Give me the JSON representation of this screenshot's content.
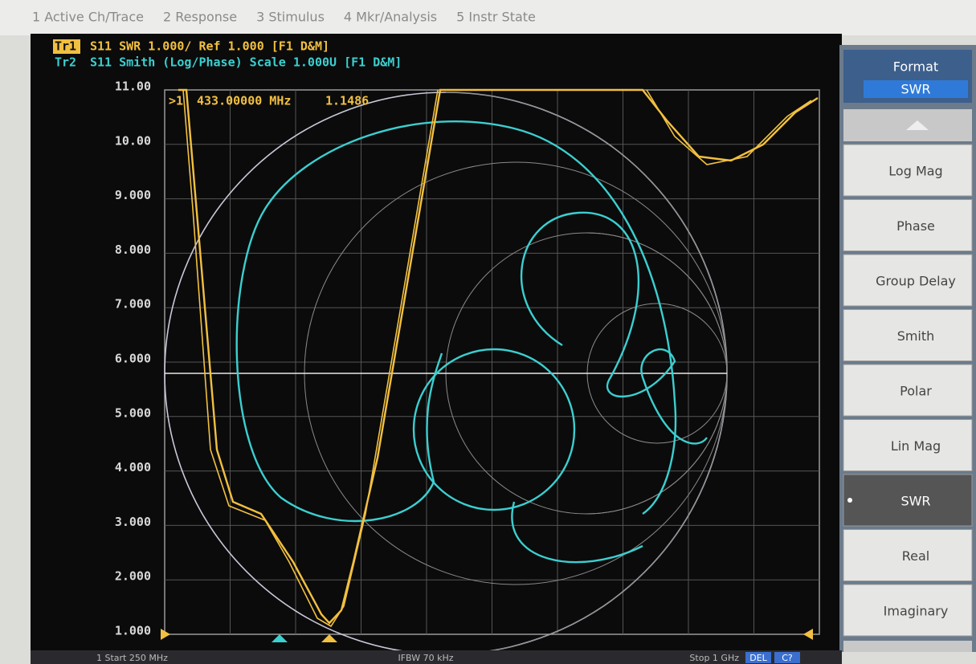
{
  "menu": [
    "1 Active Ch/Trace",
    "2 Response",
    "3 Stimulus",
    "4 Mkr/Analysis",
    "5 Instr State"
  ],
  "traces": [
    {
      "id": "Tr1",
      "text": "S11 SWR 1.000/ Ref 1.000 [F1 D&M]"
    },
    {
      "id": "Tr2",
      "text": "S11 Smith (Log/Phase) Scale 1.000U [F1 D&M]"
    }
  ],
  "marker": {
    "id": ">1",
    "stimulus": "433.00000 MHz",
    "value": "1.1486"
  },
  "y_axis": [
    "11.00",
    "10.00",
    "9.000",
    "8.000",
    "7.000",
    "6.000",
    "5.000",
    "4.000",
    "3.000",
    "2.000",
    "1.000"
  ],
  "softkeys": {
    "title": "Format",
    "current": "SWR",
    "items": [
      "Log Mag",
      "Phase",
      "Group Delay",
      "Smith",
      "Polar",
      "Lin Mag",
      "SWR",
      "Real",
      "Imaginary"
    ]
  },
  "status": {
    "start": "1 Start 250 MHz",
    "ifbw": "IFBW 70 kHz",
    "stop": "Stop 1 GHz",
    "flags": [
      "DEL",
      "C?"
    ]
  }
}
